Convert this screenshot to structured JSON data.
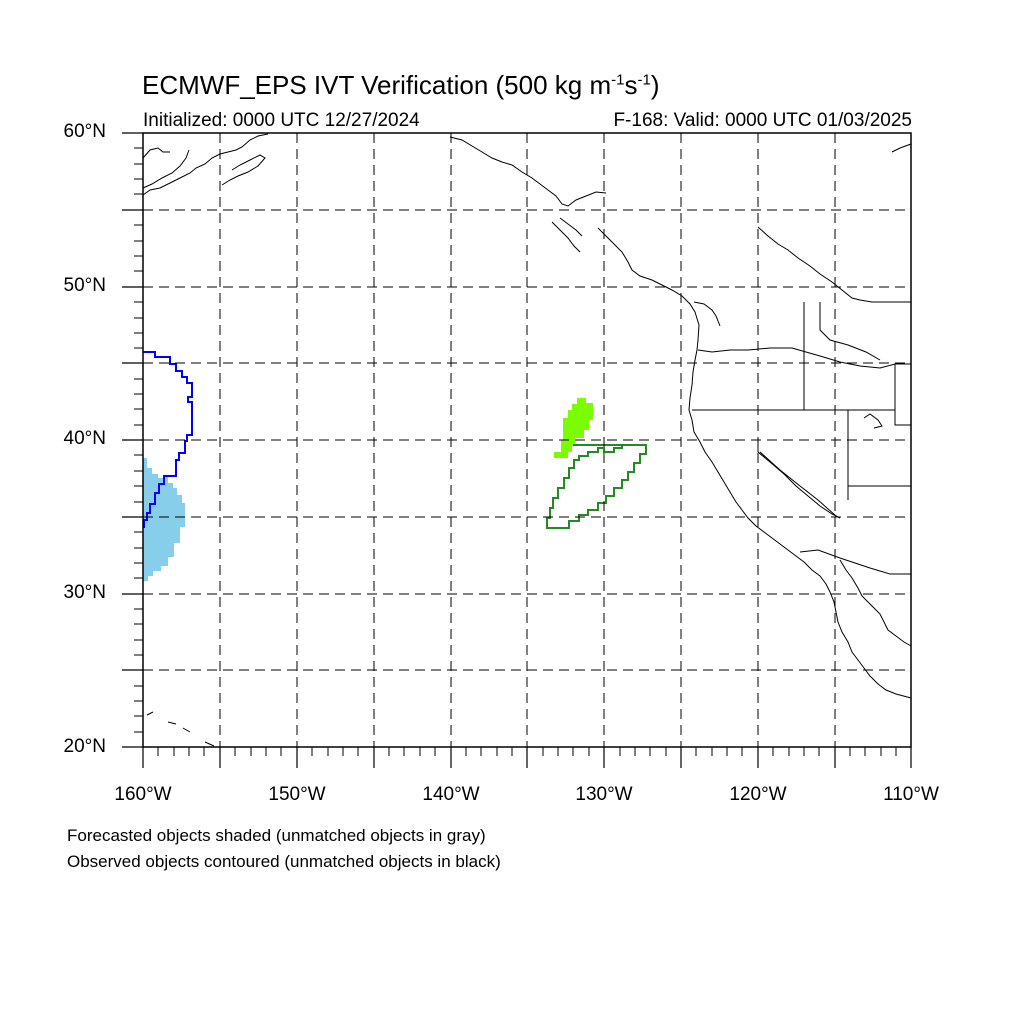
{
  "title": {
    "main": "ECMWF_EPS IVT Verification (500 kg m",
    "exp1": "-1",
    "mid": "s",
    "exp2": "-1",
    "end": ")"
  },
  "initialized": "Initialized: 0000 UTC 12/27/2024",
  "valid": "F-168: Valid: 0000 UTC 01/03/2025",
  "lat_labels": [
    "60°N",
    "50°N",
    "40°N",
    "30°N",
    "20°N"
  ],
  "lon_labels": [
    "160°W",
    "150°W",
    "140°W",
    "130°W",
    "120°W",
    "110°W"
  ],
  "notes": {
    "line1": "Forecasted objects shaded (unmatched objects in gray)",
    "line2": "Observed objects contoured (unmatched objects in black)"
  },
  "colors": {
    "forecast_object_1": "#87ceeb",
    "forecast_object_2": "#7cfc00",
    "observed_object_1": "#0000ff",
    "observed_object_2": "#228b22",
    "coastline": "#000000",
    "grid": "#000000"
  },
  "map": {
    "projection": "cylindrical equidistant",
    "lat_range": [
      20,
      60
    ],
    "lon_range": [
      -160,
      -110
    ],
    "grid_spacing_deg": 5
  }
}
